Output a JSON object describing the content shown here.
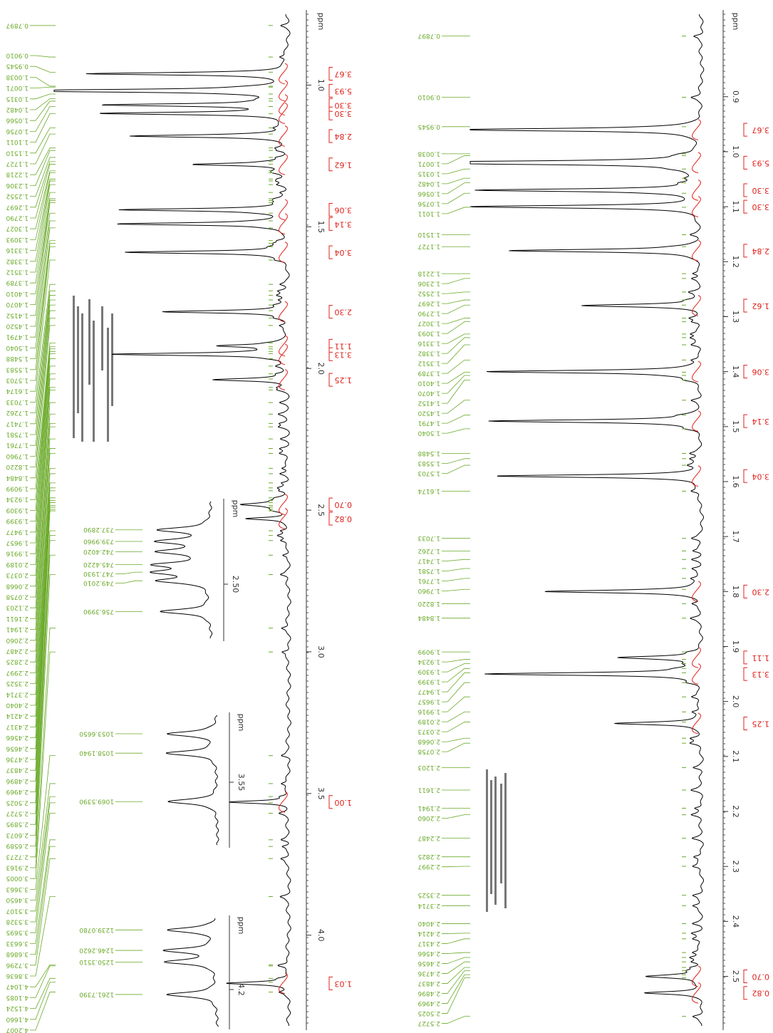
{
  "panels": [
    {
      "xlim": [
        4.32,
        0.75
      ],
      "axis_unit": "ppm",
      "axis_ticks": [
        "1.0",
        "1.5",
        "2.0",
        "2.5",
        "3.0",
        "3.5",
        "4.0"
      ],
      "peak_labels": [
        "0.7897",
        "0.9010",
        "0.9545",
        "1.0038",
        "1.0071",
        "1.0315",
        "1.0482",
        "1.0566",
        "1.0756",
        "1.1011",
        "1.1510",
        "1.1727",
        "1.2218",
        "1.2306",
        "1.2552",
        "1.2697",
        "1.2790",
        "1.3027",
        "1.3093",
        "1.3316",
        "1.3382",
        "1.3512",
        "1.3789",
        "1.4010",
        "1.4070",
        "1.4152",
        "1.4520",
        "1.4791",
        "1.5040",
        "1.5488",
        "1.5583",
        "1.5703",
        "1.6174",
        "1.7033",
        "1.7262",
        "1.7417",
        "1.7581",
        "1.7761",
        "1.7960",
        "1.8220",
        "1.8484",
        "1.9099",
        "1.9234",
        "1.9309",
        "1.9399",
        "1.9477",
        "1.9657",
        "1.9916",
        "2.0189",
        "2.0373",
        "2.0668",
        "2.0758",
        "2.1203",
        "2.1611",
        "2.1941",
        "2.2060",
        "2.2487",
        "2.2825",
        "2.2997",
        "2.3525",
        "2.3714",
        "2.4040",
        "2.4214",
        "2.4317",
        "2.4566",
        "2.4656",
        "2.4736",
        "2.4837",
        "2.4896",
        "2.4969",
        "2.5025",
        "2.5727",
        "2.5895",
        "2.6073",
        "2.6589",
        "2.7273",
        "2.9163",
        "3.0005",
        "3.3663",
        "3.4650",
        "3.5107",
        "3.5328",
        "3.5695",
        "3.6633",
        "3.6868",
        "3.7296",
        "3.8636",
        "4.1047",
        "4.1085",
        "4.1524",
        "4.1660",
        "4.2007"
      ],
      "integrals": [
        {
          "label": "3.67",
          "ppm": 0.96
        },
        {
          "label": "5.93",
          "ppm": 1.02
        },
        {
          "label": "3.30",
          "ppm": 1.07
        },
        {
          "label": "3.30",
          "ppm": 1.1
        },
        {
          "label": "2.84",
          "ppm": 1.18
        },
        {
          "label": "1.62",
          "ppm": 1.28
        },
        {
          "label": "3.06",
          "ppm": 1.44
        },
        {
          "label": "3.14",
          "ppm": 1.49
        },
        {
          "label": "3.04",
          "ppm": 1.59
        },
        {
          "label": "2.30",
          "ppm": 1.8
        },
        {
          "label": "1.11",
          "ppm": 1.92
        },
        {
          "label": "3.13",
          "ppm": 1.95
        },
        {
          "label": "1.25",
          "ppm": 2.04
        },
        {
          "label": "0.70",
          "ppm": 2.48
        },
        {
          "label": "0.82",
          "ppm": 2.53
        },
        {
          "label": "1.00",
          "ppm": 3.53
        },
        {
          "label": "1.03",
          "ppm": 4.17
        }
      ],
      "insets": [
        {
          "axis_unit": "ppm",
          "axis_ticks": [
            "2.50"
          ],
          "peak_labels": [
            "737.2890",
            "739.9960",
            "742.4020",
            "745.4220",
            "747.1930",
            "749.2010",
            "756.3990"
          ]
        },
        {
          "axis_unit": "ppm",
          "axis_ticks": [
            "3.55"
          ],
          "peak_labels": [
            "1053.6650",
            "1058.1940",
            "1069.5390"
          ]
        },
        {
          "axis_unit": "ppm",
          "axis_ticks": [
            "4.2"
          ],
          "peak_labels": [
            "1239.0780",
            "1246.2620",
            "1250.3510",
            "1261.7390"
          ]
        }
      ]
    },
    {
      "xlim": [
        2.59,
        0.75
      ],
      "axis_unit": "ppm",
      "axis_ticks": [
        "0.9",
        "1.0",
        "1.1",
        "1.2",
        "1.3",
        "1.4",
        "1.5",
        "1.6",
        "1.7",
        "1.8",
        "1.9",
        "2.0",
        "2.1",
        "2.2",
        "2.3",
        "2.4",
        "2.5"
      ],
      "peak_labels": [
        "0.7897",
        "0.9010",
        "0.9545",
        "1.0038",
        "1.0071",
        "1.0315",
        "1.0482",
        "1.0566",
        "1.0756",
        "1.1011",
        "1.1510",
        "1.1727",
        "1.2218",
        "1.2306",
        "1.2552",
        "1.2697",
        "1.2790",
        "1.3027",
        "1.3093",
        "1.3316",
        "1.3382",
        "1.3512",
        "1.3789",
        "1.4010",
        "1.4070",
        "1.4152",
        "1.4520",
        "1.4791",
        "1.5040",
        "1.5488",
        "1.5583",
        "1.5703",
        "1.6174",
        "1.7033",
        "1.7262",
        "1.7417",
        "1.7581",
        "1.7761",
        "1.7960",
        "1.8220",
        "1.8484",
        "1.9099",
        "1.9234",
        "1.9309",
        "1.9399",
        "1.9477",
        "1.9657",
        "1.9916",
        "2.0189",
        "2.0373",
        "2.0668",
        "2.0758",
        "2.1203",
        "2.1611",
        "2.1941",
        "2.2060",
        "2.2487",
        "2.2825",
        "2.2997",
        "2.3525",
        "2.3714",
        "2.4040",
        "2.4214",
        "2.4317",
        "2.4566",
        "2.4656",
        "2.4736",
        "2.4837",
        "2.4896",
        "2.4969",
        "2.5025",
        "2.5727"
      ],
      "integrals": [
        {
          "label": "3.67",
          "ppm": 0.96
        },
        {
          "label": "5.93",
          "ppm": 1.02
        },
        {
          "label": "3.30",
          "ppm": 1.07
        },
        {
          "label": "3.30",
          "ppm": 1.1
        },
        {
          "label": "2.84",
          "ppm": 1.18
        },
        {
          "label": "1.62",
          "ppm": 1.28
        },
        {
          "label": "3.06",
          "ppm": 1.4
        },
        {
          "label": "3.14",
          "ppm": 1.49
        },
        {
          "label": "3.04",
          "ppm": 1.59
        },
        {
          "label": "2.30",
          "ppm": 1.8
        },
        {
          "label": "1.11",
          "ppm": 1.92
        },
        {
          "label": "3.13",
          "ppm": 1.95
        },
        {
          "label": "1.25",
          "ppm": 2.04
        },
        {
          "label": "0.70",
          "ppm": 2.5
        },
        {
          "label": "0.82",
          "ppm": 2.53
        }
      ],
      "insets": []
    }
  ]
}
